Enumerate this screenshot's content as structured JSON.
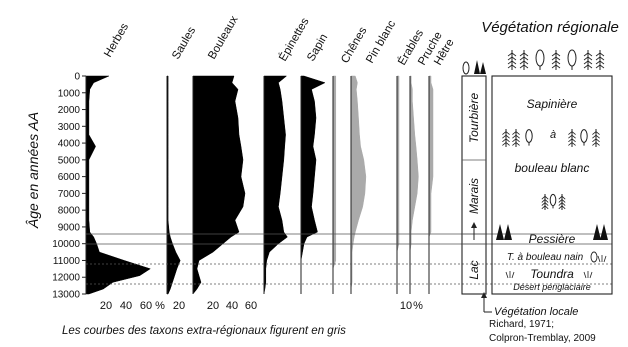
{
  "chart_data": {
    "type": "area",
    "title": "",
    "ylabel": "Âge en années AA",
    "ylim": [
      0,
      13000
    ],
    "y_ticks": [
      0,
      1000,
      2000,
      3000,
      4000,
      5000,
      6000,
      7000,
      8000,
      9000,
      10000,
      11000,
      12000,
      13000
    ],
    "y_tick_labels": [
      "0",
      "1000",
      "2000",
      "3000",
      "4000",
      "5000",
      "6000",
      "7000",
      "8000",
      "9000",
      "10000",
      "11000",
      "12000",
      "13000"
    ],
    "grid": false,
    "depth_ages": [
      0,
      400,
      800,
      1500,
      2500,
      3500,
      4200,
      5000,
      6000,
      7000,
      7800,
      8600,
      9300,
      9600,
      10000,
      10500,
      11000,
      11500,
      11900,
      12300,
      12700,
      13000
    ],
    "series": [
      {
        "name": "Herbes",
        "color": "#000000",
        "max": 75,
        "values": [
          24,
          8,
          4,
          3,
          3,
          3,
          10,
          3,
          3,
          3,
          3,
          3,
          4,
          8,
          11,
          14,
          40,
          67,
          56,
          28,
          18,
          3
        ]
      },
      {
        "name": "Saules",
        "color": "#000000",
        "max": 20,
        "values": [
          1,
          1,
          1,
          1,
          1,
          1,
          1,
          1,
          1,
          1,
          1,
          1,
          2,
          3,
          5,
          8,
          12,
          9,
          7,
          5,
          3,
          1
        ]
      },
      {
        "name": "Bouleaux",
        "color": "#000000",
        "max": 70,
        "values": [
          41,
          39,
          45,
          42,
          45,
          46,
          48,
          50,
          48,
          52,
          50,
          42,
          46,
          38,
          30,
          20,
          6,
          4,
          6,
          8,
          4,
          0
        ]
      },
      {
        "name": "Épinettes",
        "color": "#000000",
        "max": 40,
        "values": [
          25,
          16,
          18,
          20,
          22,
          24,
          23,
          22,
          20,
          18,
          16,
          20,
          22,
          26,
          16,
          6,
          3,
          2,
          2,
          2,
          1,
          0
        ]
      },
      {
        "name": "Sapin",
        "color": "#000000",
        "max": 20,
        "values": [
          2,
          16,
          7,
          9,
          10,
          9,
          8,
          10,
          9,
          8,
          7,
          9,
          11,
          4,
          2,
          1,
          0,
          0,
          0,
          0,
          0,
          0
        ]
      },
      {
        "name": "Chênes",
        "color": "#aaaaaa",
        "max": 5,
        "values": [
          1,
          1,
          1,
          1,
          1,
          1,
          1,
          1,
          1,
          1,
          1,
          1,
          1,
          1,
          1,
          1,
          1,
          0,
          0,
          0,
          0,
          0
        ]
      },
      {
        "name": "Pin blanc",
        "color": "#aaaaaa",
        "max": 30,
        "values": [
          4,
          6,
          5,
          6,
          7,
          8,
          9,
          12,
          14,
          13,
          11,
          7,
          4,
          3,
          2,
          1,
          1,
          1,
          1,
          1,
          0,
          0
        ]
      },
      {
        "name": "Érables",
        "color": "#aaaaaa",
        "max": 5,
        "values": [
          1,
          1,
          1,
          1,
          1,
          1,
          1,
          1,
          1,
          1,
          1,
          1,
          1,
          1,
          1,
          0,
          0,
          0,
          0,
          0,
          0,
          0
        ]
      },
      {
        "name": "Pruche",
        "color": "#aaaaaa",
        "max": 15,
        "values": [
          1,
          1,
          2,
          2,
          3,
          4,
          5,
          6,
          7,
          6,
          4,
          2,
          1,
          1,
          1,
          0,
          0,
          0,
          0,
          0,
          0,
          0
        ]
      },
      {
        "name": "Hêtre",
        "color": "#aaaaaa",
        "max": 5,
        "values": [
          1,
          1,
          2,
          2,
          2,
          2,
          2,
          2,
          2,
          1,
          1,
          1,
          1,
          0,
          0,
          0,
          0,
          0,
          0,
          0,
          0,
          0
        ]
      }
    ],
    "x_tick_labels": {
      "herbes": [
        "20",
        "40",
        "60",
        "%"
      ],
      "saules": [
        "20"
      ],
      "bouleaux": [
        "20",
        "40",
        "60"
      ],
      "pruche": [
        "10",
        "%"
      ]
    },
    "footnote": "Les courbes des taxons extra-régionaux figurent en gris",
    "local_vegetation": {
      "title": "Végétation locale",
      "zones": [
        "Tourbière",
        "Marais",
        "Lac"
      ]
    },
    "regional_vegetation": {
      "title": "Végétation régionale",
      "zones": [
        "Sapinière",
        "à",
        "bouleau blanc",
        "Pessière",
        "T. à bouleau nain",
        "Toundra",
        "Désert périglaciaire"
      ]
    },
    "source": [
      "Richard, 1971;",
      "Colpron-Tremblay, 2009"
    ]
  }
}
